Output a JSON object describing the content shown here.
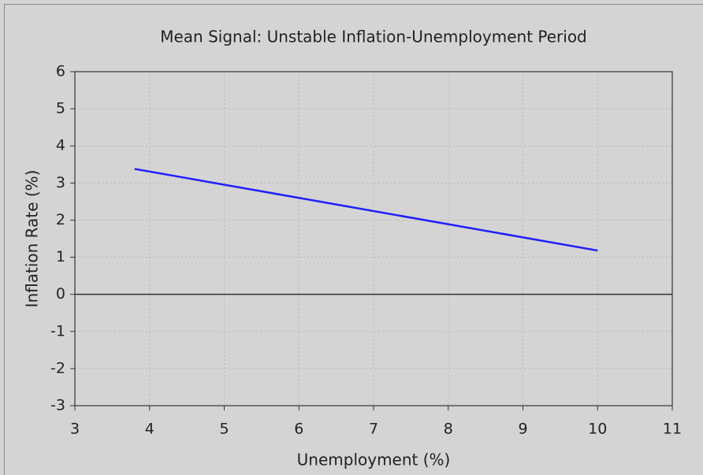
{
  "chart_data": {
    "type": "line",
    "title": "Mean Signal: Unstable Inflation-Unemployment Period",
    "x_label": "Unemployment (%)",
    "y_label": "Inflation Rate (%)",
    "x": [
      3.8,
      10
    ],
    "series": [
      {
        "name": "Mean Signal",
        "color": "#1f1fff",
        "values": [
          3.38,
          1.18
        ]
      }
    ],
    "xlim": [
      3,
      11
    ],
    "xticks": [
      3,
      4,
      5,
      6,
      7,
      8,
      9,
      10,
      11
    ],
    "ylim": [
      -3,
      6
    ],
    "yticks": [
      -3,
      -2,
      -1,
      0,
      1,
      2,
      3,
      4,
      5,
      6
    ],
    "grid": true
  }
}
